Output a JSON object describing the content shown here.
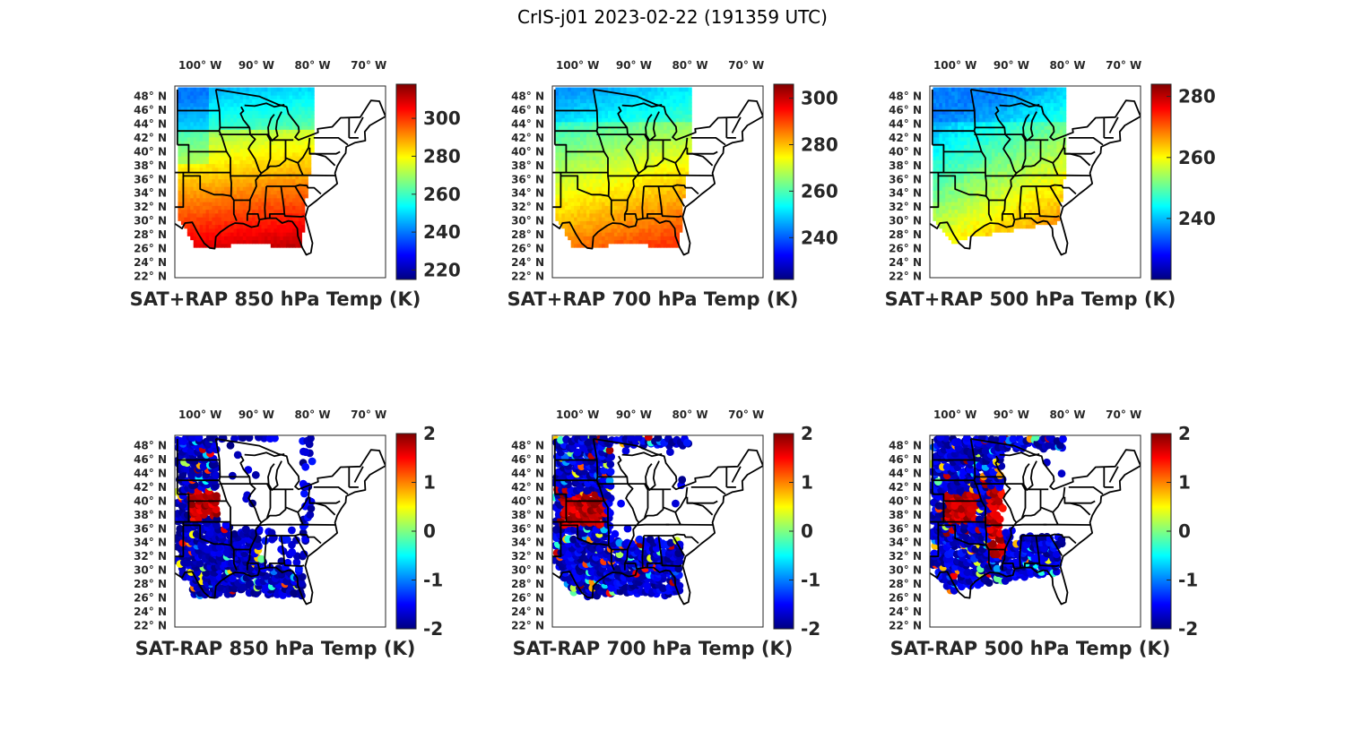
{
  "figure_title": "CrIS-j01 2023-02-22 (191359 UTC)",
  "lon_ticks": [
    {
      "deg": "100",
      "hemi": "W"
    },
    {
      "deg": "90",
      "hemi": "W"
    },
    {
      "deg": "80",
      "hemi": "W"
    },
    {
      "deg": "70",
      "hemi": "W"
    }
  ],
  "lat_ticks": [
    {
      "deg": "48",
      "hemi": "N"
    },
    {
      "deg": "46",
      "hemi": "N"
    },
    {
      "deg": "44",
      "hemi": "N"
    },
    {
      "deg": "42",
      "hemi": "N"
    },
    {
      "deg": "40",
      "hemi": "N"
    },
    {
      "deg": "38",
      "hemi": "N"
    },
    {
      "deg": "36",
      "hemi": "N"
    },
    {
      "deg": "34",
      "hemi": "N"
    },
    {
      "deg": "32",
      "hemi": "N"
    },
    {
      "deg": "30",
      "hemi": "N"
    },
    {
      "deg": "28",
      "hemi": "N"
    },
    {
      "deg": "26",
      "hemi": "N"
    },
    {
      "deg": "24",
      "hemi": "N"
    },
    {
      "deg": "22",
      "hemi": "N"
    }
  ],
  "colormap": "jet",
  "panels": [
    {
      "title": "SAT+RAP 850 hPa Temp (K)",
      "kind": "field",
      "clim": [
        215,
        318
      ],
      "colorbar_ticks": [
        "220",
        "240",
        "260",
        "280",
        "300"
      ]
    },
    {
      "title": "SAT+RAP 700 hPa Temp (K)",
      "kind": "field",
      "clim": [
        222,
        306
      ],
      "colorbar_ticks": [
        "240",
        "260",
        "280",
        "300"
      ]
    },
    {
      "title": "SAT+RAP 500 hPa Temp (K)",
      "kind": "field",
      "clim": [
        220,
        284
      ],
      "colorbar_ticks": [
        "240",
        "260",
        "280"
      ]
    },
    {
      "title": "SAT-RAP 850 hPa Temp (K)",
      "kind": "diff",
      "clim": [
        -2,
        2
      ],
      "colorbar_ticks": [
        "-2",
        "-1",
        "0",
        "1",
        "2"
      ]
    },
    {
      "title": "SAT-RAP 700 hPa Temp (K)",
      "kind": "diff",
      "clim": [
        -2,
        2
      ],
      "colorbar_ticks": [
        "-2",
        "-1",
        "0",
        "1",
        "2"
      ]
    },
    {
      "title": "SAT-RAP 500 hPa Temp (K)",
      "kind": "diff",
      "clim": [
        -2,
        2
      ],
      "colorbar_ticks": [
        "-2",
        "-1",
        "0",
        "1",
        "2"
      ]
    }
  ]
}
